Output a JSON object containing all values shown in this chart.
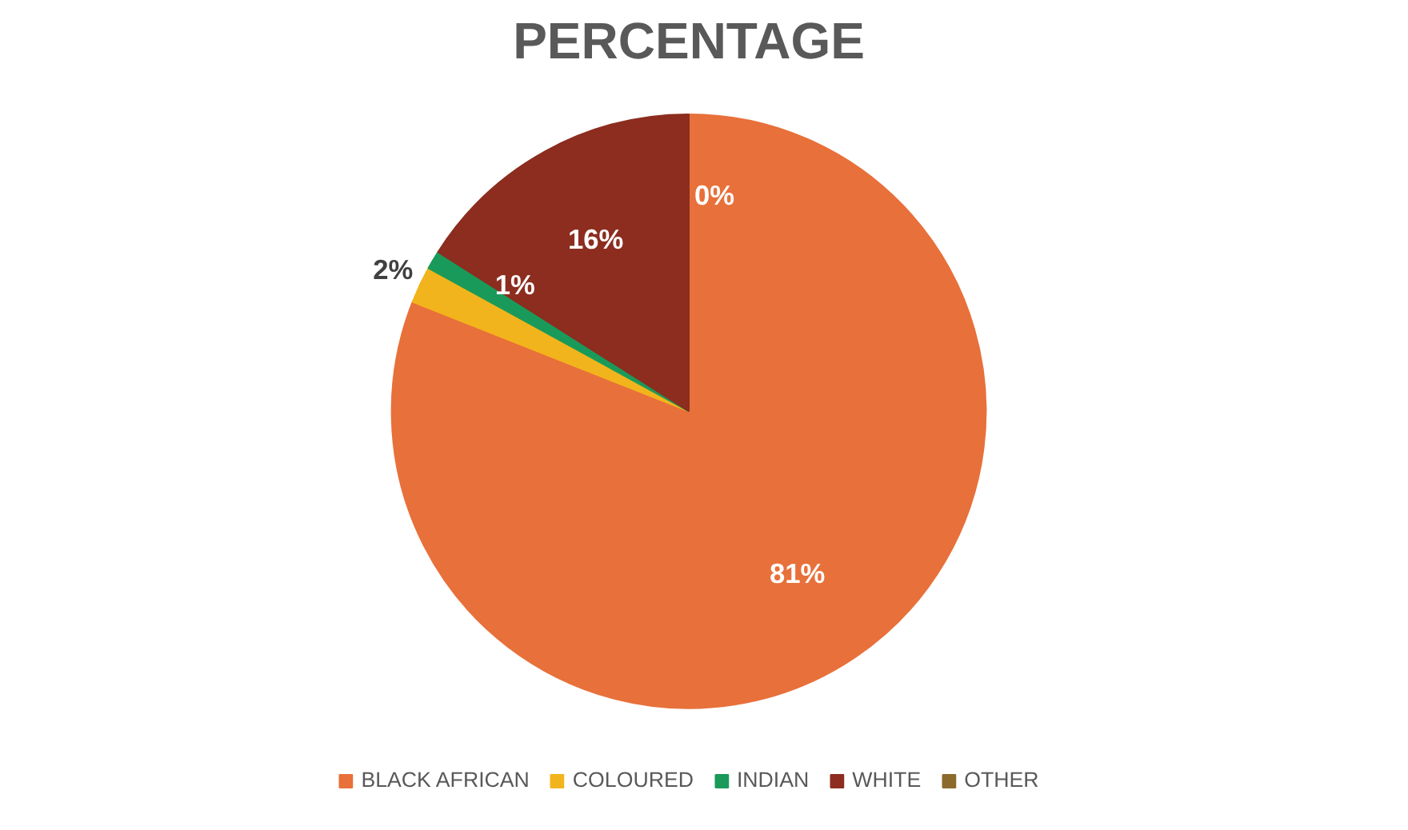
{
  "chart_data": {
    "type": "pie",
    "title": "PERCENTAGE",
    "categories": [
      "BLACK AFRICAN",
      "COLOURED",
      "INDIAN",
      "WHITE",
      "OTHER"
    ],
    "values": [
      81,
      2,
      1,
      16,
      0
    ],
    "value_labels": [
      "81%",
      "2%",
      "1%",
      "16%",
      "0%"
    ],
    "colors": [
      "#e8703a",
      "#f2b41c",
      "#1a9a5a",
      "#8c2d1f",
      "#8c6a2c"
    ],
    "legend": "bottom"
  }
}
